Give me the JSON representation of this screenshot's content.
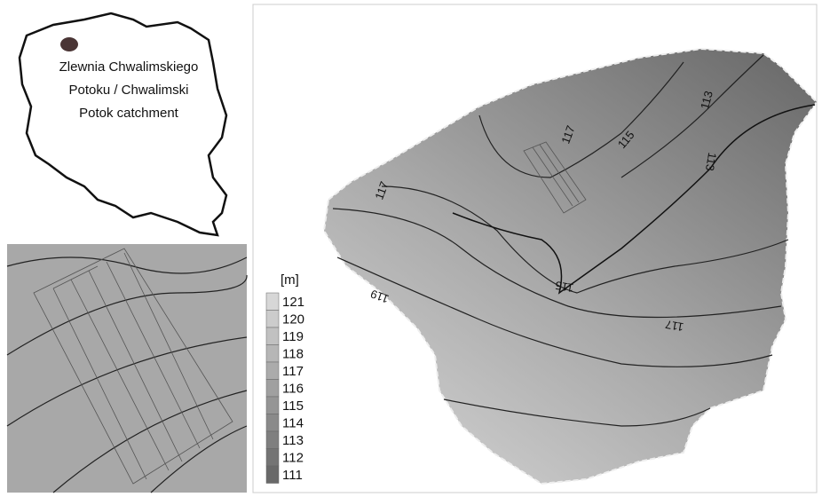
{
  "inset_map": {
    "label_lines": [
      "Zlewnia Chwalimskiego",
      "Potoku / Chwalimski",
      "Potok catchment"
    ]
  },
  "legend": {
    "unit": "[m]",
    "levels": [
      121,
      120,
      119,
      118,
      117,
      116,
      115,
      114,
      113,
      112,
      111
    ]
  },
  "contour_labels": [
    117,
    115,
    113,
    113,
    117,
    119,
    115,
    117
  ]
}
